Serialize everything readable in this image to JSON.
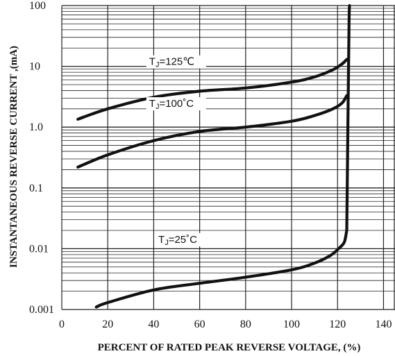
{
  "chart_data": {
    "type": "line",
    "title": "",
    "xlabel": "PERCENT OF RATED PEAK REVERSE VOLTAGE, (%)",
    "ylabel": "INSTANTANEOUS REVERSE CURRENT ,(mA)",
    "x_ticks": [
      "0",
      "20",
      "40",
      "60",
      "80",
      "100",
      "120",
      "140"
    ],
    "y_ticks": [
      "0.001",
      "0.01",
      "0.1",
      "1.0",
      "10",
      "100"
    ],
    "xlim": [
      0,
      145
    ],
    "ylim": [
      0.001,
      100
    ],
    "y_scale": "log",
    "grid": true,
    "series": [
      {
        "name": "TJ=125℃",
        "label": "T",
        "label_sub": "J",
        "label_rest": "=125℃",
        "x": [
          7,
          20,
          40,
          60,
          80,
          100,
          110,
          118,
          122,
          124
        ],
        "y": [
          1.35,
          2.0,
          3.1,
          3.9,
          4.4,
          5.5,
          6.7,
          8.8,
          11.0,
          13.0
        ]
      },
      {
        "name": "TJ=100℃",
        "label": "T",
        "label_sub": "J",
        "label_rest": "=100˚C",
        "x": [
          7,
          20,
          40,
          60,
          80,
          100,
          110,
          118,
          122,
          124
        ],
        "y": [
          0.22,
          0.35,
          0.6,
          0.85,
          1.0,
          1.25,
          1.55,
          2.0,
          2.5,
          3.3
        ]
      },
      {
        "name": "TJ=25℃",
        "label": "T",
        "label_sub": "J",
        "label_rest": "=25˚C",
        "x": [
          15,
          20,
          40,
          60,
          80,
          100,
          110,
          117,
          121,
          123,
          124
        ],
        "y": [
          0.0011,
          0.0013,
          0.0021,
          0.0027,
          0.0034,
          0.0045,
          0.0058,
          0.0078,
          0.0105,
          0.013,
          0.02
        ]
      }
    ],
    "breakdown": {
      "x": [
        124,
        124.5,
        125,
        125.2
      ],
      "y": [
        0.02,
        1,
        50,
        100
      ]
    }
  }
}
